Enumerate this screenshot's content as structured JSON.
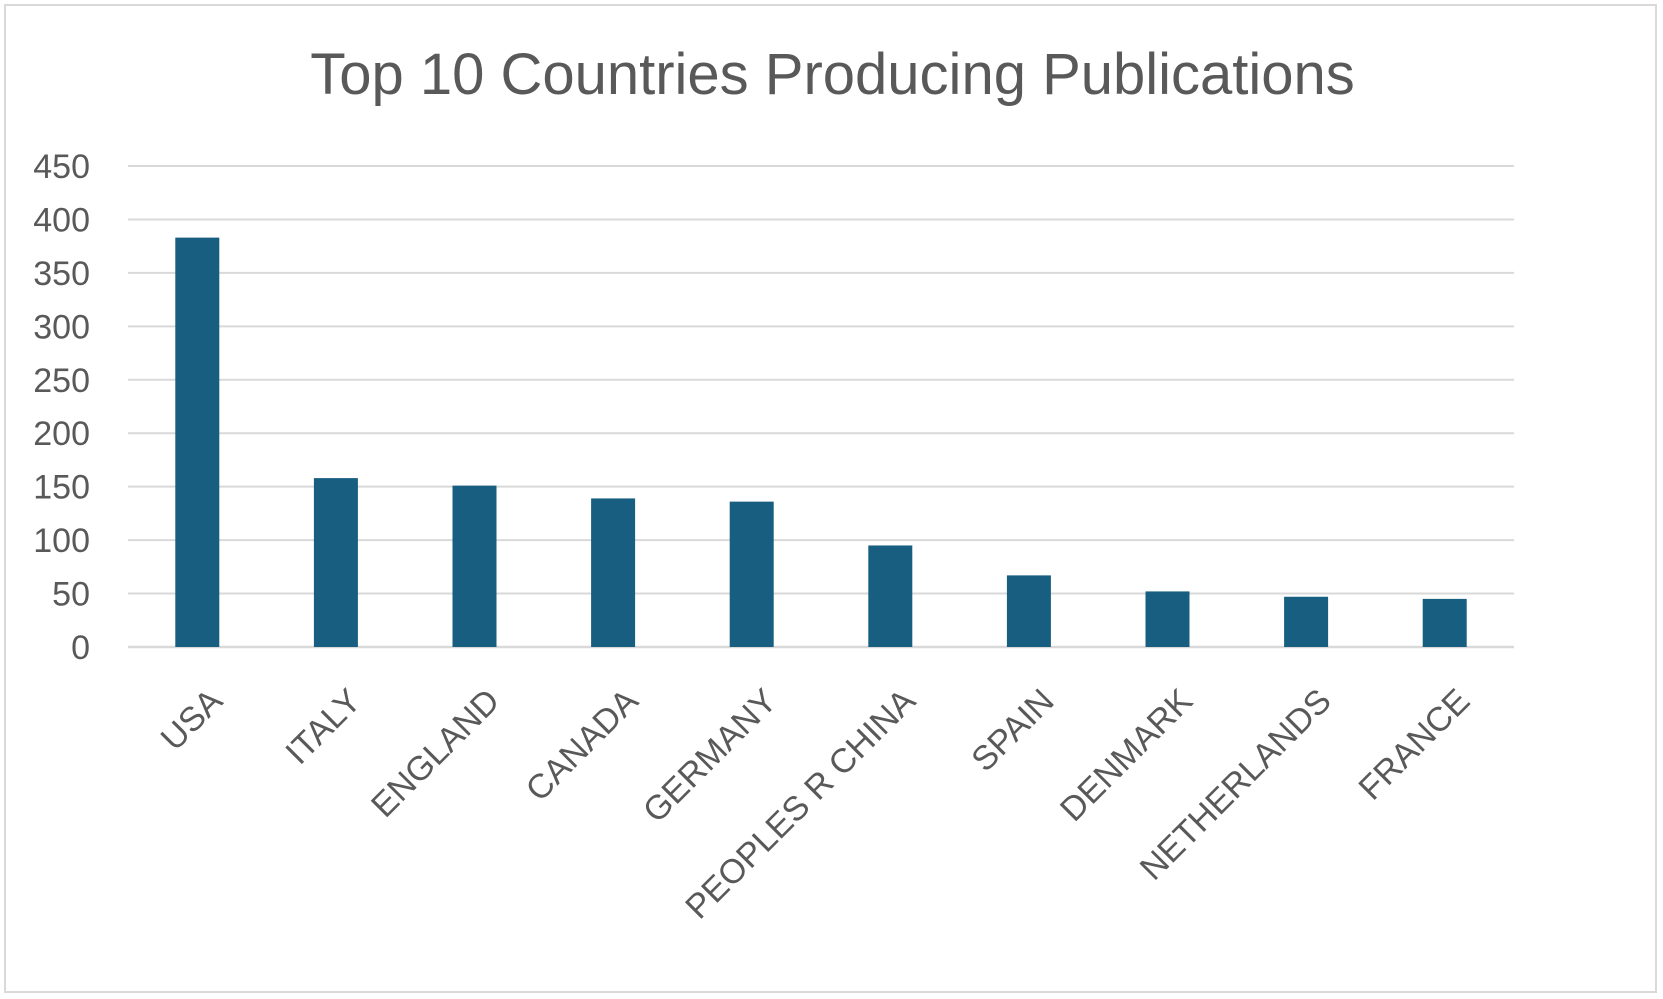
{
  "chart_data": {
    "type": "bar",
    "title": "Top 10 Countries Producing Publications",
    "xlabel": "",
    "ylabel": "",
    "categories": [
      "USA",
      "ITALY",
      "ENGLAND",
      "CANADA",
      "GERMANY",
      "PEOPLES R CHINA",
      "SPAIN",
      "DENMARK",
      "NETHERLANDS",
      "FRANCE"
    ],
    "values": [
      383,
      158,
      151,
      139,
      136,
      95,
      67,
      52,
      47,
      45
    ],
    "ylim": [
      0,
      450
    ],
    "yticks": [
      0,
      50,
      100,
      150,
      200,
      250,
      300,
      350,
      400,
      450
    ],
    "grid": true,
    "legend": "none",
    "colors": {
      "bar": "#175e80",
      "grid": "#d9d9d9",
      "text": "#595959"
    }
  }
}
